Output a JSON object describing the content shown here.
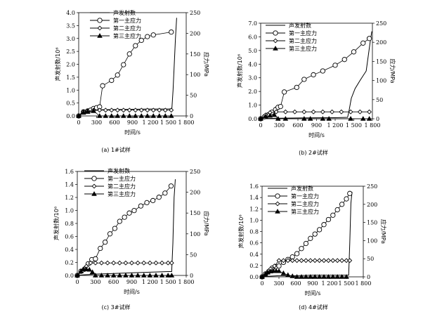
{
  "chart_data": [
    {
      "type": "line",
      "caption": "(a) 1#试样",
      "xlabel": "时间/s",
      "ylabel_left": "声发射数/10⁶",
      "ylabel_right": "应力/MPa",
      "xlim": [
        0,
        1800
      ],
      "xticks": [
        "0",
        "300",
        "600",
        "900",
        "1 200",
        "1 500",
        "1 800"
      ],
      "ylim_left": [
        0,
        4.0
      ],
      "yticks_left": [
        "0.0",
        "0.5",
        "1.0",
        "1.5",
        "2.0",
        "2.5",
        "3.0",
        "3.5",
        "4.0"
      ],
      "ylim_right": [
        0,
        250
      ],
      "yticks_right": [
        "0",
        "50",
        "100",
        "150",
        "200",
        "250"
      ],
      "legend_position": "top-center",
      "series": [
        {
          "name": "声发射数",
          "marker": "none",
          "axis": "left",
          "x": [
            0,
            60,
            100,
            200,
            300,
            350,
            400,
            600,
            900,
            1200,
            1500,
            1560,
            1580,
            1620,
            1640
          ],
          "y": [
            0,
            0.15,
            0.18,
            0.2,
            0.22,
            0.23,
            0.24,
            0.25,
            0.26,
            0.27,
            0.27,
            0.28,
            1.0,
            3.0,
            3.8
          ]
        },
        {
          "name": "第一主应力",
          "marker": "circle",
          "axis": "right",
          "x": [
            0,
            80,
            150,
            200,
            250,
            300,
            350,
            400,
            550,
            650,
            750,
            850,
            950,
            1050,
            1150,
            1250,
            1550
          ],
          "y": [
            0,
            10,
            12,
            14,
            18,
            20,
            22,
            73,
            86,
            99,
            124,
            150,
            170,
            183,
            192,
            196,
            203
          ]
        },
        {
          "name": "第二主应力",
          "marker": "diamond",
          "axis": "right",
          "x": [
            0,
            80,
            150,
            250,
            350,
            450,
            550,
            650,
            750,
            850,
            950,
            1050,
            1150,
            1250,
            1350,
            1450,
            1550
          ],
          "y": [
            0,
            10,
            12,
            14,
            14,
            14,
            14,
            14,
            14,
            14,
            14,
            14,
            14,
            14,
            14,
            14,
            14
          ]
        },
        {
          "name": "第三主应力",
          "marker": "triangle",
          "axis": "right",
          "x": [
            0,
            80,
            150,
            250,
            350,
            450,
            550,
            650,
            750,
            850,
            950,
            1050,
            1150,
            1250,
            1350,
            1450,
            1550
          ],
          "y": [
            0,
            8,
            10,
            12,
            0,
            0,
            0,
            0,
            0,
            0,
            0,
            0,
            0,
            0,
            0,
            0,
            0
          ]
        }
      ]
    },
    {
      "type": "line",
      "caption": "(b) 2#试样",
      "xlabel": "时间/s",
      "ylabel_left": "声发射数/10⁶",
      "ylabel_right": "应力/MPa",
      "xlim": [
        0,
        1800
      ],
      "xticks": [
        "0",
        "300",
        "600",
        "900",
        "1 200",
        "1 500",
        "1 800"
      ],
      "ylim_left": [
        0,
        7.0
      ],
      "yticks_left": [
        "0.0",
        "1.0",
        "2.0",
        "3.0",
        "4.0",
        "5.0",
        "6.0",
        "7.0"
      ],
      "ylim_right": [
        0,
        250
      ],
      "yticks_right": [
        "0",
        "50",
        "100",
        "150",
        "200",
        "250"
      ],
      "legend_position": "top-center",
      "series": [
        {
          "name": "声发射数",
          "marker": "none",
          "axis": "left",
          "x": [
            0,
            100,
            300,
            600,
            900,
            1200,
            1400,
            1420,
            1460,
            1520,
            1600,
            1700,
            1760,
            1790
          ],
          "y": [
            0,
            0.02,
            0.04,
            0.06,
            0.07,
            0.08,
            0.1,
            0.5,
            1.5,
            2.2,
            2.8,
            3.5,
            5.5,
            6.4
          ]
        },
        {
          "name": "第一主应力",
          "marker": "circle",
          "axis": "right",
          "x": [
            0,
            60,
            120,
            180,
            240,
            280,
            320,
            380,
            580,
            700,
            850,
            1000,
            1200,
            1350,
            1500,
            1650,
            1750
          ],
          "y": [
            0,
            5,
            10,
            17,
            24,
            30,
            32,
            70,
            82,
            103,
            115,
            125,
            140,
            155,
            175,
            198,
            210
          ]
        },
        {
          "name": "第二主应力",
          "marker": "diamond",
          "axis": "right",
          "x": [
            0,
            80,
            150,
            250,
            400,
            550,
            700,
            850,
            1000,
            1150,
            1300,
            1450,
            1600,
            1750
          ],
          "y": [
            0,
            10,
            16,
            18,
            18,
            18,
            18,
            18,
            18,
            18,
            18,
            18,
            18,
            18
          ]
        },
        {
          "name": "第三主应力",
          "marker": "triangle",
          "axis": "right",
          "x": [
            0,
            80,
            150,
            220,
            280,
            400,
            700,
            800,
            1000,
            1100,
            1450,
            1650,
            1750
          ],
          "y": [
            0,
            6,
            8,
            10,
            0,
            0,
            0,
            0,
            0,
            0,
            0,
            0,
            0
          ]
        }
      ]
    },
    {
      "type": "line",
      "caption": "(c) 3#试样",
      "xlabel": "时间/s",
      "ylabel_left": "声发射数/10⁶",
      "ylabel_right": "应力/MPa",
      "xlim": [
        0,
        1800
      ],
      "xticks": [
        "0",
        "300",
        "600",
        "900",
        "1 200",
        "1 500",
        "1 800"
      ],
      "ylim_left": [
        0,
        1.6
      ],
      "yticks_left": [
        "0.0",
        "0.2",
        "0.4",
        "0.6",
        "0.8",
        "1.0",
        "1.2",
        "1.4",
        "1.6"
      ],
      "ylim_right": [
        0,
        250
      ],
      "yticks_right": [
        "0",
        "50",
        "100",
        "150",
        "200",
        "250"
      ],
      "legend_position": "top-center",
      "series": [
        {
          "name": "声发射数",
          "marker": "none",
          "axis": "left",
          "x": [
            0,
            100,
            300,
            600,
            900,
            1200,
            1500,
            1560,
            1580,
            1600,
            1620
          ],
          "y": [
            0,
            0.01,
            0.02,
            0.03,
            0.04,
            0.05,
            0.06,
            0.06,
            0.5,
            1.2,
            1.48
          ]
        },
        {
          "name": "第一主应力",
          "marker": "circle",
          "axis": "right",
          "x": [
            0,
            60,
            120,
            180,
            240,
            300,
            380,
            460,
            540,
            620,
            700,
            780,
            860,
            940,
            1050,
            1150,
            1250,
            1350,
            1450,
            1550
          ],
          "y": [
            0,
            10,
            15,
            28,
            38,
            40,
            65,
            80,
            100,
            113,
            130,
            140,
            150,
            156,
            167,
            175,
            180,
            188,
            198,
            215
          ]
        },
        {
          "name": "第二主应力",
          "marker": "diamond",
          "axis": "right",
          "x": [
            0,
            80,
            150,
            220,
            300,
            400,
            500,
            600,
            700,
            800,
            900,
            1000,
            1100,
            1200,
            1300,
            1400,
            1500,
            1560
          ],
          "y": [
            0,
            10,
            22,
            30,
            30,
            30,
            30,
            30,
            30,
            30,
            30,
            30,
            30,
            30,
            30,
            30,
            30,
            30
          ]
        },
        {
          "name": "第三主应力",
          "marker": "triangle",
          "axis": "right",
          "x": [
            0,
            60,
            100,
            150,
            200,
            250,
            300,
            400,
            500,
            600,
            700,
            800,
            900,
            1000,
            1100,
            1200,
            1300,
            1400,
            1500,
            1560
          ],
          "y": [
            0,
            10,
            15,
            15,
            14,
            8,
            0,
            0,
            0,
            0,
            0,
            0,
            0,
            0,
            0,
            0,
            0,
            0,
            0,
            0
          ]
        }
      ]
    },
    {
      "type": "line",
      "caption": "(d) 4#试样",
      "xlabel": "时间/s",
      "ylabel_left": "声发射数/10⁶",
      "ylabel_right": "应力/MPa",
      "xlim": [
        0,
        1800
      ],
      "xticks": [
        "0",
        "300",
        "600",
        "900",
        "1 200",
        "1 500",
        "1 800"
      ],
      "ylim_left": [
        0,
        1.6
      ],
      "yticks_left": [
        "0.0",
        "0.2",
        "0.4",
        "0.6",
        "0.8",
        "1.0",
        "1.2",
        "1.4",
        "1.6"
      ],
      "ylim_right": [
        0,
        250
      ],
      "yticks_right": [
        "0",
        "50",
        "100",
        "150",
        "200",
        "250"
      ],
      "legend_position": "top-center",
      "series": [
        {
          "name": "声发射数",
          "marker": "none",
          "axis": "left",
          "x": [
            0,
            100,
            300,
            600,
            900,
            1200,
            1500,
            1540,
            1560,
            1580,
            1600
          ],
          "y": [
            0,
            0.01,
            0.02,
            0.02,
            0.03,
            0.03,
            0.03,
            0.03,
            0.6,
            1.3,
            1.5
          ]
        },
        {
          "name": "第一主应力",
          "marker": "circle",
          "axis": "right",
          "x": [
            0,
            60,
            120,
            180,
            240,
            300,
            380,
            460,
            540,
            620,
            700,
            780,
            860,
            940,
            1020,
            1100,
            1180,
            1260,
            1340,
            1420,
            1500,
            1560
          ],
          "y": [
            0,
            8,
            15,
            24,
            28,
            30,
            40,
            48,
            55,
            64,
            78,
            92,
            106,
            118,
            130,
            144,
            158,
            170,
            185,
            200,
            215,
            230
          ]
        },
        {
          "name": "第二主应力",
          "marker": "diamond",
          "axis": "right",
          "x": [
            0,
            80,
            150,
            220,
            300,
            380,
            460,
            540,
            620,
            700,
            780,
            860,
            940,
            1020,
            1100,
            1180,
            1260,
            1340,
            1420,
            1500,
            1560
          ],
          "y": [
            0,
            10,
            22,
            30,
            45,
            45,
            45,
            45,
            45,
            45,
            45,
            45,
            45,
            45,
            45,
            45,
            45,
            45,
            45,
            45,
            45
          ]
        },
        {
          "name": "第三主应力",
          "marker": "triangle",
          "axis": "right",
          "x": [
            0,
            60,
            100,
            150,
            200,
            250,
            300,
            380,
            460,
            540,
            620,
            700,
            780,
            860,
            940,
            1020,
            1100,
            1180,
            1260,
            1340,
            1420,
            1500
          ],
          "y": [
            0,
            8,
            12,
            15,
            16,
            16,
            16,
            10,
            5,
            2,
            0,
            0,
            0,
            0,
            0,
            0,
            0,
            0,
            0,
            0,
            0,
            0
          ]
        }
      ]
    }
  ]
}
